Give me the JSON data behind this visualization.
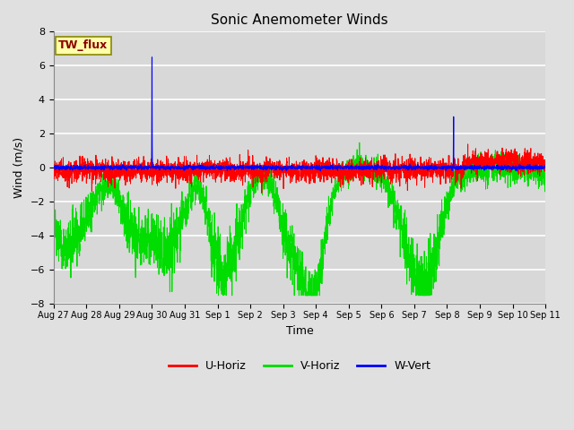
{
  "title": "Sonic Anemometer Winds",
  "xlabel": "Time",
  "ylabel": "Wind (m/s)",
  "ylim": [
    -8,
    8
  ],
  "yticks": [
    -8,
    -6,
    -4,
    -2,
    0,
    2,
    4,
    6,
    8
  ],
  "fig_bg_color": "#e0e0e0",
  "plot_bg_color": "#d8d8d8",
  "grid_color": "#ffffff",
  "u_color": "red",
  "v_color": "#00dd00",
  "w_color": "blue",
  "legend_labels": [
    "U-Horiz",
    "V-Horiz",
    "W-Vert"
  ],
  "watermark_text": "TW_flux",
  "watermark_fg": "#8b0000",
  "watermark_bg": "#ffffaa",
  "x_tick_labels": [
    "Aug 27",
    "Aug 28",
    "Aug 29",
    "Aug 30",
    "Aug 31",
    "Sep 1",
    "Sep 2",
    "Sep 3",
    "Sep 4",
    "Sep 5",
    "Sep 6",
    "Sep 7",
    "Sep 8",
    "Sep 9",
    "Sep 10",
    "Sep 11"
  ],
  "n_points": 3000,
  "seed": 12345
}
